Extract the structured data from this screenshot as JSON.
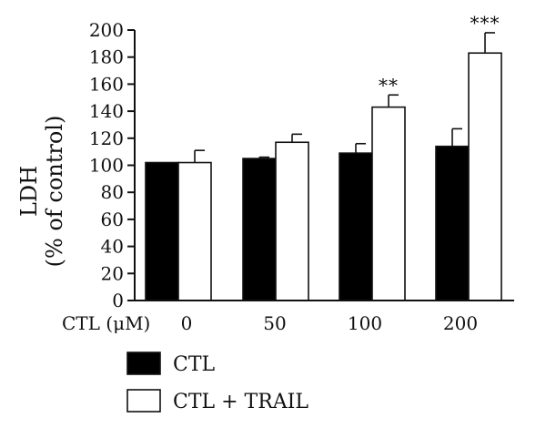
{
  "chart_data": {
    "type": "bar",
    "xlabel": "CTL (μM)",
    "ylabel": [
      "LDH",
      "(% of control)"
    ],
    "categories": [
      "0",
      "50",
      "100",
      "200"
    ],
    "ylim": [
      0,
      200
    ],
    "yticks": [
      0,
      20,
      40,
      60,
      80,
      100,
      120,
      140,
      160,
      180,
      200
    ],
    "grid": false,
    "legend_position": "bottom-left",
    "series": [
      {
        "name": "CTL",
        "color": "#000000",
        "values": [
          102,
          105,
          109,
          114
        ],
        "errors": [
          0,
          1,
          7,
          13
        ]
      },
      {
        "name": "CTL + TRAIL",
        "color": "#ffffff",
        "values": [
          102,
          117,
          143,
          183
        ],
        "errors": [
          9,
          6,
          9,
          15
        ]
      }
    ],
    "annotations": [
      {
        "category": "100",
        "series": "CTL + TRAIL",
        "text": "**"
      },
      {
        "category": "200",
        "series": "CTL + TRAIL",
        "text": "***"
      }
    ]
  }
}
